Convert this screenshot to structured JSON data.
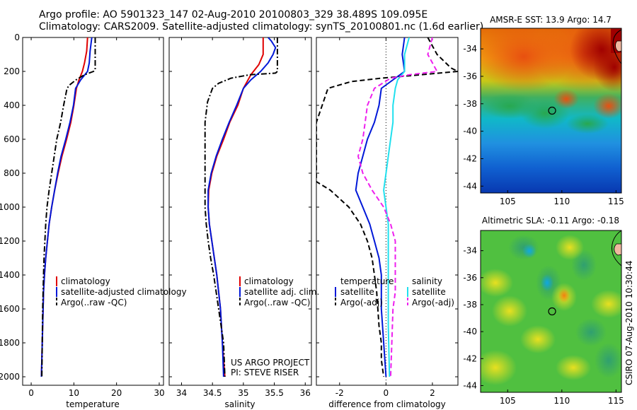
{
  "title_line1": "Argo profile: AO 5901323_147 02-Aug-2010 20100803_329 38.489S 109.095E",
  "title_line2": "Climatology: CARS2009. Satellite-adjusted climatology: synTS_20100801.nc (1.6d earlier)",
  "colors": {
    "climatology": "#e00000",
    "satellite": "#0018d8",
    "argo": "#000000",
    "sat_salinity": "#20e0ee",
    "argo_adj_salinity": "#ee20ee"
  },
  "chart_data": [
    {
      "type": "line",
      "name": "temperature-panel",
      "xlabel": "temperature",
      "xlim": [
        -2,
        31
      ],
      "ylim": [
        2050,
        0
      ],
      "xticks": [
        0,
        10,
        20,
        30
      ],
      "yticks": [
        0,
        200,
        400,
        600,
        800,
        1000,
        1200,
        1400,
        1600,
        1800,
        2000
      ],
      "legend": {
        "position": "lower-middle",
        "entries": [
          "climatology",
          "satellite-adjusted climatology",
          "Argo(..raw -QC)"
        ]
      },
      "series": [
        {
          "name": "climatology",
          "color": "#e00000",
          "style": "solid",
          "points": [
            [
              13.2,
              0
            ],
            [
              13.0,
              80
            ],
            [
              12.5,
              150
            ],
            [
              12.0,
              200
            ],
            [
              11.2,
              250
            ],
            [
              10.6,
              300
            ],
            [
              10.0,
              400
            ],
            [
              9.3,
              500
            ],
            [
              8.3,
              600
            ],
            [
              7.2,
              700
            ],
            [
              6.3,
              800
            ],
            [
              5.5,
              900
            ],
            [
              4.8,
              1000
            ],
            [
              4.2,
              1100
            ],
            [
              3.8,
              1200
            ],
            [
              3.4,
              1300
            ],
            [
              3.1,
              1400
            ],
            [
              2.9,
              1500
            ],
            [
              2.8,
              1600
            ],
            [
              2.6,
              1800
            ],
            [
              2.4,
              2000
            ]
          ]
        },
        {
          "name": "satellite-adjusted climatology",
          "color": "#0018d8",
          "style": "solid",
          "points": [
            [
              14.2,
              0
            ],
            [
              13.8,
              80
            ],
            [
              13.6,
              150
            ],
            [
              13.2,
              200
            ],
            [
              11.6,
              250
            ],
            [
              10.4,
              300
            ],
            [
              9.9,
              400
            ],
            [
              9.1,
              500
            ],
            [
              8.1,
              600
            ],
            [
              7.0,
              700
            ],
            [
              6.2,
              800
            ],
            [
              5.5,
              900
            ],
            [
              4.8,
              1000
            ],
            [
              4.2,
              1100
            ],
            [
              3.8,
              1200
            ],
            [
              3.4,
              1300
            ],
            [
              3.1,
              1400
            ],
            [
              2.9,
              1500
            ],
            [
              2.8,
              1600
            ],
            [
              2.6,
              1800
            ],
            [
              2.4,
              2000
            ]
          ]
        },
        {
          "name": "Argo(..raw -QC)",
          "color": "#000000",
          "style": "dashdot",
          "points": [
            [
              15.0,
              0
            ],
            [
              15.0,
              100
            ],
            [
              15.0,
              190
            ],
            [
              14.6,
              200
            ],
            [
              12.5,
              220
            ],
            [
              10.5,
              250
            ],
            [
              9.0,
              280
            ],
            [
              8.4,
              300
            ],
            [
              8.0,
              350
            ],
            [
              7.6,
              400
            ],
            [
              6.9,
              500
            ],
            [
              6.0,
              600
            ],
            [
              5.4,
              700
            ],
            [
              4.8,
              800
            ],
            [
              4.2,
              900
            ],
            [
              3.7,
              1000
            ],
            [
              3.4,
              1100
            ],
            [
              3.2,
              1200
            ],
            [
              3.0,
              1300
            ],
            [
              2.9,
              1400
            ],
            [
              2.8,
              1500
            ],
            [
              2.7,
              1600
            ],
            [
              2.6,
              1800
            ],
            [
              2.5,
              2000
            ]
          ]
        }
      ]
    },
    {
      "type": "line",
      "name": "salinity-panel",
      "xlabel": "salinity",
      "xlim": [
        33.8,
        36.1
      ],
      "ylim": [
        2050,
        0
      ],
      "xticks": [
        34,
        34.5,
        35,
        35.5,
        36
      ],
      "legend": {
        "position": "lower-middle",
        "entries": [
          "climatology",
          "satellite adj. clim.",
          "Argo(..raw -QC)"
        ]
      },
      "annotations": [
        "US ARGO PROJECT",
        "PI: STEVE RISER"
      ],
      "series": [
        {
          "name": "climatology",
          "color": "#e00000",
          "style": "solid",
          "points": [
            [
              35.32,
              0
            ],
            [
              35.32,
              100
            ],
            [
              35.25,
              160
            ],
            [
              35.12,
              220
            ],
            [
              35.0,
              300
            ],
            [
              34.91,
              400
            ],
            [
              34.78,
              500
            ],
            [
              34.68,
              600
            ],
            [
              34.57,
              700
            ],
            [
              34.49,
              800
            ],
            [
              34.44,
              900
            ],
            [
              34.43,
              1000
            ],
            [
              34.45,
              1100
            ],
            [
              34.49,
              1200
            ],
            [
              34.53,
              1300
            ],
            [
              34.57,
              1400
            ],
            [
              34.6,
              1500
            ],
            [
              34.63,
              1600
            ],
            [
              34.66,
              1800
            ],
            [
              34.7,
              2000
            ]
          ]
        },
        {
          "name": "satellite adj. clim.",
          "color": "#0018d8",
          "style": "solid",
          "points": [
            [
              35.4,
              0
            ],
            [
              35.45,
              20
            ],
            [
              35.52,
              60
            ],
            [
              35.48,
              100
            ],
            [
              35.4,
              150
            ],
            [
              35.28,
              200
            ],
            [
              35.12,
              250
            ],
            [
              35.0,
              300
            ],
            [
              34.89,
              400
            ],
            [
              34.77,
              500
            ],
            [
              34.66,
              600
            ],
            [
              34.56,
              700
            ],
            [
              34.48,
              800
            ],
            [
              34.43,
              900
            ],
            [
              34.43,
              1000
            ],
            [
              34.45,
              1100
            ],
            [
              34.49,
              1200
            ],
            [
              34.53,
              1300
            ],
            [
              34.57,
              1400
            ],
            [
              34.6,
              1500
            ],
            [
              34.63,
              1600
            ],
            [
              34.66,
              1800
            ],
            [
              34.68,
              2000
            ]
          ]
        },
        {
          "name": "Argo(..raw -QC)",
          "color": "#000000",
          "style": "dashdot",
          "points": [
            [
              35.55,
              0
            ],
            [
              35.55,
              100
            ],
            [
              35.55,
              200
            ],
            [
              35.52,
              210
            ],
            [
              35.1,
              220
            ],
            [
              34.8,
              240
            ],
            [
              34.6,
              270
            ],
            [
              34.5,
              300
            ],
            [
              34.42,
              380
            ],
            [
              34.38,
              500
            ],
            [
              34.38,
              600
            ],
            [
              34.38,
              700
            ],
            [
              34.38,
              800
            ],
            [
              34.38,
              900
            ],
            [
              34.38,
              1000
            ],
            [
              34.4,
              1100
            ],
            [
              34.43,
              1200
            ],
            [
              34.47,
              1300
            ],
            [
              34.52,
              1400
            ],
            [
              34.56,
              1500
            ],
            [
              34.6,
              1600
            ],
            [
              34.64,
              1700
            ],
            [
              34.68,
              1800
            ],
            [
              34.7,
              2000
            ]
          ]
        }
      ]
    },
    {
      "type": "line",
      "name": "difference-panel",
      "xlabel": "difference from climatology",
      "xlim": [
        -3,
        3.1
      ],
      "ylim": [
        2050,
        0
      ],
      "xticks": [
        -2,
        0,
        2
      ],
      "legend": {
        "position": "lower-middle",
        "entries": [
          "temperature",
          "satellite",
          "Argo(-adj)",
          "salinity",
          "satellite",
          "Argo(-adj)"
        ]
      },
      "series": [
        {
          "name": "temperature satellite",
          "color": "#0018d8",
          "style": "solid",
          "points": [
            [
              0.8,
              0
            ],
            [
              0.7,
              100
            ],
            [
              0.8,
              200
            ],
            [
              0.3,
              250
            ],
            [
              -0.2,
              300
            ],
            [
              -0.3,
              400
            ],
            [
              -0.5,
              500
            ],
            [
              -0.8,
              600
            ],
            [
              -1.0,
              700
            ],
            [
              -1.2,
              800
            ],
            [
              -1.3,
              900
            ],
            [
              -1.0,
              1000
            ],
            [
              -0.7,
              1100
            ],
            [
              -0.5,
              1200
            ],
            [
              -0.3,
              1300
            ],
            [
              -0.2,
              1400
            ],
            [
              -0.2,
              1500
            ],
            [
              -0.2,
              1600
            ],
            [
              -0.1,
              1800
            ],
            [
              0.0,
              2000
            ]
          ]
        },
        {
          "name": "temperature Argo(-adj)",
          "color": "#000000",
          "style": "dashed",
          "points": [
            [
              1.8,
              0
            ],
            [
              2.2,
              100
            ],
            [
              2.8,
              180
            ],
            [
              3.1,
              200
            ],
            [
              1.5,
              220
            ],
            [
              -0.2,
              240
            ],
            [
              -1.5,
              260
            ],
            [
              -2.5,
              300
            ],
            [
              -3.0,
              500
            ],
            [
              -3.0,
              800
            ],
            [
              -3.0,
              850
            ],
            [
              -2.4,
              900
            ],
            [
              -1.6,
              1000
            ],
            [
              -1.1,
              1100
            ],
            [
              -0.8,
              1200
            ],
            [
              -0.6,
              1300
            ],
            [
              -0.5,
              1400
            ],
            [
              -0.4,
              1500
            ],
            [
              -0.3,
              1700
            ],
            [
              -0.2,
              1800
            ],
            [
              -0.2,
              1900
            ],
            [
              -0.1,
              2000
            ]
          ]
        },
        {
          "name": "salinity satellite",
          "color": "#20e0ee",
          "style": "solid",
          "points": [
            [
              1.0,
              0
            ],
            [
              0.8,
              100
            ],
            [
              0.8,
              200
            ],
            [
              0.5,
              250
            ],
            [
              0.4,
              300
            ],
            [
              0.3,
              400
            ],
            [
              0.3,
              500
            ],
            [
              0.2,
              600
            ],
            [
              0.1,
              700
            ],
            [
              0.0,
              800
            ],
            [
              -0.1,
              900
            ],
            [
              0.0,
              1000
            ],
            [
              0.1,
              1100
            ],
            [
              0.1,
              1300
            ],
            [
              0.1,
              1500
            ],
            [
              0.1,
              1700
            ],
            [
              0.15,
              2000
            ]
          ]
        },
        {
          "name": "salinity Argo(-adj)",
          "color": "#ee20ee",
          "style": "dashed",
          "points": [
            [
              2.0,
              0
            ],
            [
              1.8,
              100
            ],
            [
              2.2,
              200
            ],
            [
              1.0,
              220
            ],
            [
              0.2,
              240
            ],
            [
              -0.5,
              300
            ],
            [
              -0.8,
              400
            ],
            [
              -0.9,
              500
            ],
            [
              -1.0,
              600
            ],
            [
              -1.2,
              700
            ],
            [
              -1.0,
              800
            ],
            [
              -0.6,
              900
            ],
            [
              -0.1,
              1000
            ],
            [
              0.2,
              1100
            ],
            [
              0.4,
              1200
            ],
            [
              0.4,
              1300
            ],
            [
              0.4,
              1400
            ],
            [
              0.4,
              1500
            ],
            [
              0.3,
              1600
            ],
            [
              0.25,
              1800
            ],
            [
              0.2,
              2000
            ]
          ]
        }
      ]
    },
    {
      "type": "heatmap",
      "name": "sst-map",
      "title": "AMSR-E SST: 13.9 Argo: 14.7",
      "xlim": [
        102.5,
        115.5
      ],
      "ylim": [
        -44.5,
        -32.5
      ],
      "xticks": [
        105,
        110,
        115
      ],
      "yticks": [
        -34,
        -36,
        -38,
        -40,
        -42,
        -44
      ],
      "argo_position": [
        109.1,
        -38.5
      ]
    },
    {
      "type": "heatmap",
      "name": "sla-map",
      "title": "Altimetric SLA: -0.11 Argo: -0.18",
      "xlim": [
        102.5,
        115.5
      ],
      "ylim": [
        -44.5,
        -32.5
      ],
      "xticks": [
        105,
        110,
        115
      ],
      "yticks": [
        -34,
        -36,
        -38,
        -40,
        -42,
        -44
      ],
      "argo_position": [
        109.1,
        -38.5
      ]
    }
  ],
  "credit": "CSIRO 07-Aug-2010 10:30:44"
}
